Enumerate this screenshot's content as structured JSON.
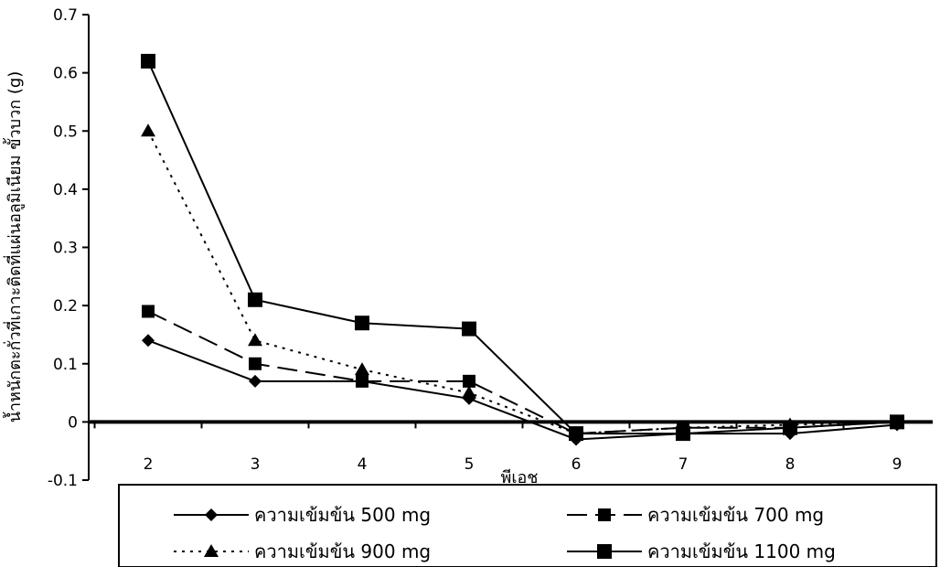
{
  "chart_data": {
    "type": "line",
    "title": "",
    "xlabel": "พีเอช",
    "ylabel": "น้ำหนักตะกั่วที่เกาะติดที่แผ่นอลูมิเนียม ขั้วบวก (g)",
    "x": [
      2,
      3,
      4,
      5,
      6,
      7,
      8,
      9
    ],
    "x_tick_labels": [
      "2",
      "3",
      "4",
      "5",
      "6",
      "7",
      "8",
      "9"
    ],
    "ylim": [
      -0.1,
      0.7
    ],
    "y_tick_labels": [
      "-0.1",
      "0",
      "0.1",
      "0.2",
      "0.3",
      "0.4",
      "0.5",
      "0.6",
      "0.7"
    ],
    "grid": false,
    "legend_position": "bottom",
    "series": [
      {
        "name": "ความเข้มข้น 500 mg",
        "marker": "diamond",
        "dash": "solid",
        "values": [
          0.14,
          0.07,
          0.07,
          0.04,
          -0.03,
          -0.02,
          -0.02,
          -0.005
        ]
      },
      {
        "name": "ความเข้มข้น 700 mg",
        "marker": "square",
        "dash": "long-dash",
        "values": [
          0.19,
          0.1,
          0.07,
          0.07,
          -0.02,
          -0.01,
          -0.01,
          0.0
        ]
      },
      {
        "name": "ความเข้มข้น 900 mg",
        "marker": "triangle",
        "dash": "dotted",
        "values": [
          0.5,
          0.14,
          0.09,
          0.05,
          -0.02,
          -0.01,
          -0.005,
          0.0
        ]
      },
      {
        "name": "ความเข้มข้น 1100 mg",
        "marker": "square-large",
        "dash": "solid",
        "values": [
          0.62,
          0.21,
          0.17,
          0.16,
          -0.02,
          -0.02,
          -0.01,
          0.0
        ]
      }
    ]
  }
}
